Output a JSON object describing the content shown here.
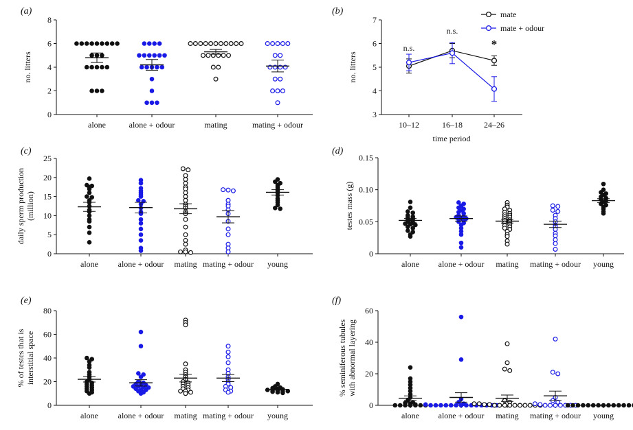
{
  "colors": {
    "black": "#111111",
    "blue": "#1a1ae6"
  },
  "chart_data": [
    {
      "id": "a",
      "panel_label": "(a)",
      "type": "scatter",
      "ylabel": "no. litters",
      "ylim": [
        0,
        8
      ],
      "yticks": [
        0,
        2,
        4,
        6,
        8
      ],
      "categories": [
        "alone",
        "alone + odour",
        "mating",
        "mating + odour"
      ],
      "series": [
        {
          "name": "alone",
          "color": "black",
          "filled": true,
          "mean": 4.8,
          "sem": 0.4,
          "values": [
            6,
            6,
            6,
            6,
            6,
            6,
            6,
            6,
            6,
            5,
            5,
            5,
            4,
            4,
            4,
            4,
            4,
            2,
            2,
            2
          ]
        },
        {
          "name": "alone + odour",
          "color": "blue",
          "filled": true,
          "mean": 4.2,
          "sem": 0.45,
          "values": [
            6,
            6,
            6,
            6,
            5,
            5,
            5,
            5,
            5,
            5,
            4,
            4,
            4,
            4,
            4,
            3,
            2,
            1,
            1,
            1
          ]
        },
        {
          "name": "mating",
          "color": "black",
          "filled": false,
          "mean": 5.3,
          "sem": 0.2,
          "values": [
            6,
            6,
            6,
            6,
            6,
            6,
            6,
            6,
            6,
            6,
            6,
            5,
            5,
            5,
            5,
            5,
            5,
            4,
            4,
            3
          ]
        },
        {
          "name": "mating + odour",
          "color": "blue",
          "filled": false,
          "mean": 4.1,
          "sem": 0.5,
          "values": [
            6,
            6,
            6,
            6,
            6,
            5,
            5,
            4,
            4,
            4,
            4,
            3,
            3,
            2,
            2,
            2,
            1
          ]
        }
      ]
    },
    {
      "id": "b",
      "panel_label": "(b)",
      "type": "line",
      "ylabel": "no. litters",
      "xlabel": "time period",
      "ylim": [
        3,
        7
      ],
      "yticks": [
        3,
        4,
        5,
        6,
        7
      ],
      "categories": [
        "10–12",
        "16–18",
        "24–26"
      ],
      "series": [
        {
          "name": "mate",
          "color": "black",
          "values": [
            5.05,
            5.7,
            5.28
          ],
          "sem": [
            0.3,
            0.3,
            0.2
          ]
        },
        {
          "name": "mate + odour",
          "color": "blue",
          "values": [
            5.2,
            5.6,
            4.08
          ],
          "sem": [
            0.35,
            0.45,
            0.52
          ]
        }
      ],
      "annotations": [
        "n.s.",
        "n.s.",
        "*"
      ]
    },
    {
      "id": "c",
      "panel_label": "(c)",
      "type": "scatter",
      "ylabel_lines": [
        "daily sperm production",
        "(million)"
      ],
      "ylim": [
        0,
        25
      ],
      "yticks": [
        0,
        5,
        10,
        15,
        20,
        25
      ],
      "categories": [
        "alone",
        "alone + odour",
        "mating",
        "mating + odour",
        "young"
      ],
      "series": [
        {
          "name": "alone",
          "color": "black",
          "filled": true,
          "mean": 12.3,
          "sem": 1.2,
          "values": [
            19.7,
            18,
            17.8,
            17.5,
            17,
            16,
            15,
            14.8,
            14,
            13.5,
            12.5,
            11.5,
            11,
            10,
            9,
            8.5,
            7,
            5.5,
            3
          ]
        },
        {
          "name": "alone + odour",
          "color": "blue",
          "filled": true,
          "mean": 12.1,
          "sem": 1.4,
          "values": [
            19.3,
            18.5,
            17.2,
            16.5,
            16,
            15.5,
            15,
            14,
            13.8,
            13,
            12,
            11,
            10.5,
            9,
            8,
            6.5,
            5,
            3.5,
            1.5,
            0.8
          ]
        },
        {
          "name": "mating",
          "color": "black",
          "filled": false,
          "mean": 11.8,
          "sem": 1.3,
          "values": [
            22.3,
            22,
            20.5,
            19.5,
            18.5,
            17.5,
            17,
            16,
            15,
            14,
            13,
            12.5,
            12,
            11,
            10.5,
            9,
            7,
            5,
            3.5,
            2.5,
            1,
            0.5,
            0.5,
            0.3
          ]
        },
        {
          "name": "mating + odour",
          "color": "blue",
          "filled": false,
          "mean": 9.7,
          "sem": 1.6,
          "values": [
            16.8,
            16.7,
            16.5,
            14,
            13,
            12.5,
            11.5,
            10.5,
            8.5,
            6.5,
            5,
            2.5,
            1.5,
            0.5
          ]
        },
        {
          "name": "young",
          "color": "black",
          "filled": true,
          "mean": 16.1,
          "sem": 0.7,
          "values": [
            19.5,
            18.9,
            18.5,
            18,
            17.5,
            17,
            16.5,
            16,
            15.3,
            14.5,
            14,
            13.5,
            12.8,
            12,
            11.8
          ]
        }
      ]
    },
    {
      "id": "d",
      "panel_label": "(d)",
      "type": "scatter",
      "ylabel": "testes mass (g)",
      "ylim": [
        0,
        0.15
      ],
      "yticks": [
        0,
        0.05,
        0.1,
        0.15
      ],
      "ytick_labels": [
        "0",
        "0.05",
        "0.10",
        "0.15"
      ],
      "categories": [
        "alone",
        "alone + odour",
        "mating",
        "mating + odour",
        "young"
      ],
      "series": [
        {
          "name": "alone",
          "color": "black",
          "filled": true,
          "mean": 0.052,
          "sem": 0.003,
          "values": [
            0.081,
            0.072,
            0.066,
            0.064,
            0.06,
            0.058,
            0.057,
            0.055,
            0.054,
            0.052,
            0.05,
            0.048,
            0.047,
            0.046,
            0.045,
            0.042,
            0.04,
            0.036,
            0.034,
            0.03,
            0.027
          ]
        },
        {
          "name": "alone + odour",
          "color": "blue",
          "filled": true,
          "mean": 0.055,
          "sem": 0.004,
          "values": [
            0.08,
            0.078,
            0.075,
            0.072,
            0.07,
            0.068,
            0.065,
            0.063,
            0.06,
            0.058,
            0.057,
            0.056,
            0.055,
            0.054,
            0.052,
            0.05,
            0.048,
            0.045,
            0.04,
            0.035,
            0.03,
            0.017,
            0.01
          ]
        },
        {
          "name": "mating",
          "color": "black",
          "filled": false,
          "mean": 0.051,
          "sem": 0.003,
          "values": [
            0.08,
            0.076,
            0.073,
            0.07,
            0.068,
            0.065,
            0.063,
            0.061,
            0.06,
            0.058,
            0.057,
            0.055,
            0.053,
            0.052,
            0.05,
            0.048,
            0.046,
            0.044,
            0.042,
            0.04,
            0.038,
            0.035,
            0.03,
            0.027,
            0.02,
            0.015
          ]
        },
        {
          "name": "mating + odour",
          "color": "blue",
          "filled": false,
          "mean": 0.046,
          "sem": 0.005,
          "values": [
            0.075,
            0.074,
            0.068,
            0.066,
            0.06,
            0.055,
            0.05,
            0.045,
            0.042,
            0.038,
            0.032,
            0.028,
            0.022,
            0.016,
            0.007
          ]
        },
        {
          "name": "young",
          "color": "black",
          "filled": true,
          "mean": 0.083,
          "sem": 0.003,
          "values": [
            0.109,
            0.1,
            0.096,
            0.094,
            0.092,
            0.089,
            0.087,
            0.085,
            0.083,
            0.081,
            0.078,
            0.076,
            0.073,
            0.07,
            0.066,
            0.063
          ]
        }
      ]
    },
    {
      "id": "e",
      "panel_label": "(e)",
      "type": "scatter",
      "ylabel_lines": [
        "% of testes that is",
        "interstitial space"
      ],
      "ylim": [
        0,
        80
      ],
      "yticks": [
        0,
        20,
        40,
        60,
        80
      ],
      "categories": [
        "alone",
        "alone + odour",
        "mating",
        "mating + odour",
        "young"
      ],
      "series": [
        {
          "name": "alone",
          "color": "black",
          "filled": true,
          "mean": 22,
          "sem": 2.3,
          "values": [
            40,
            39,
            37,
            34,
            32,
            28,
            26,
            24,
            22,
            20,
            19,
            18,
            17,
            16,
            15,
            14,
            13,
            12,
            11,
            10
          ]
        },
        {
          "name": "alone + odour",
          "color": "blue",
          "filled": true,
          "mean": 19,
          "sem": 2.7,
          "values": [
            62,
            50,
            27,
            26,
            24,
            20,
            19,
            18,
            17,
            17,
            16,
            16,
            15,
            15,
            14,
            13,
            13,
            12,
            11,
            10
          ]
        },
        {
          "name": "mating",
          "color": "black",
          "filled": false,
          "mean": 23,
          "sem": 3.2,
          "values": [
            72,
            70,
            68,
            35,
            30,
            28,
            26,
            24,
            22,
            20,
            19,
            18,
            17,
            16,
            15,
            14,
            13,
            12,
            12,
            11,
            10
          ]
        },
        {
          "name": "mating + odour",
          "color": "blue",
          "filled": false,
          "mean": 23,
          "sem": 3,
          "values": [
            50,
            45,
            41,
            36,
            30,
            27,
            24,
            22,
            20,
            18,
            16,
            15,
            13,
            12,
            11
          ]
        },
        {
          "name": "young",
          "color": "black",
          "filled": true,
          "mean": 13.5,
          "sem": 0.6,
          "values": [
            18,
            16,
            15,
            14.5,
            14,
            13.5,
            13,
            13,
            12.5,
            12,
            12,
            11.5,
            11,
            10.5
          ]
        }
      ]
    },
    {
      "id": "f",
      "panel_label": "(f)",
      "type": "scatter",
      "ylabel_lines": [
        "% seminiferous tubules",
        "with abnormal layering"
      ],
      "ylim": [
        0,
        60
      ],
      "yticks": [
        0,
        20,
        40,
        60
      ],
      "categories": [
        "alone",
        "alone + odour",
        "mating",
        "mating + odour",
        "young"
      ],
      "series": [
        {
          "name": "alone",
          "color": "black",
          "filled": true,
          "mean": 4.5,
          "sem": 1.5,
          "values": [
            24,
            17,
            15,
            13,
            11,
            9,
            7,
            5,
            3,
            2,
            1.5,
            1,
            0.5,
            0,
            0,
            0,
            0,
            0,
            0,
            0
          ]
        },
        {
          "name": "alone + odour",
          "color": "blue",
          "filled": true,
          "mean": 5,
          "sem": 3,
          "values": [
            56,
            29,
            4,
            2,
            1,
            0.5,
            0,
            0,
            0,
            0,
            0,
            0,
            0,
            0,
            0,
            0,
            0,
            0,
            0,
            0
          ]
        },
        {
          "name": "mating",
          "color": "black",
          "filled": false,
          "mean": 4.5,
          "sem": 2,
          "values": [
            39,
            27,
            23,
            22,
            3,
            2,
            1,
            1,
            0.5,
            0.5,
            0,
            0,
            0,
            0,
            0,
            0,
            0,
            0,
            0,
            0
          ]
        },
        {
          "name": "mating + odour",
          "color": "blue",
          "filled": false,
          "mean": 6,
          "sem": 3,
          "values": [
            42,
            21,
            20,
            5,
            3,
            2,
            1,
            0.5,
            0,
            0,
            0,
            0,
            0,
            0,
            0
          ]
        },
        {
          "name": "young",
          "color": "black",
          "filled": true,
          "mean": 0,
          "sem": 0,
          "values": [
            0,
            0,
            0,
            0,
            0,
            0,
            0,
            0,
            0,
            0,
            0,
            0,
            0,
            0,
            0
          ]
        }
      ]
    }
  ]
}
